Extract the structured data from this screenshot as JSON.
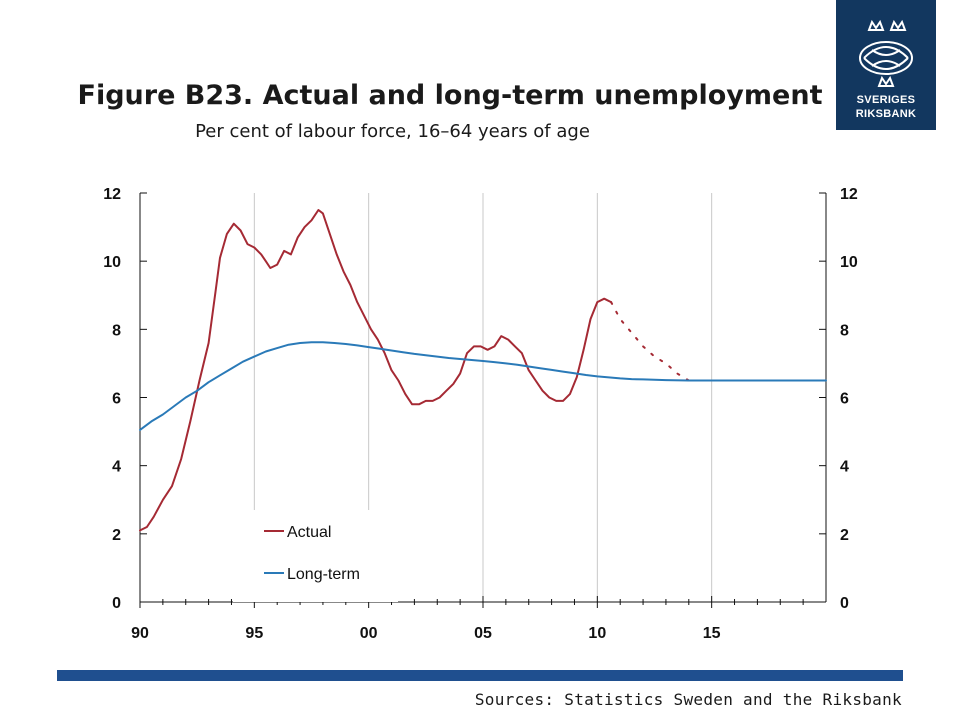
{
  "header": {
    "title": "Figure B23. Actual and long-term unemployment",
    "subtitle": "Per cent of labour force, 16–64 years of age"
  },
  "logo": {
    "line1": "SVERIGES",
    "line2": "RIKSBANK",
    "color": "#12375f"
  },
  "footer": {
    "sources": "Sources: Statistics Sweden and the Riksbank",
    "bar_color": "#1f4f8f"
  },
  "chart_data": {
    "type": "line",
    "title": "",
    "xlabel": "",
    "ylabel": "",
    "xlim": [
      1990,
      2020
    ],
    "ylim": [
      0,
      12
    ],
    "x_ticks": [
      1990,
      1995,
      2000,
      2005,
      2010,
      2015
    ],
    "x_tick_labels": [
      "90",
      "95",
      "00",
      "05",
      "10",
      "15"
    ],
    "y_ticks": [
      0,
      2,
      4,
      6,
      8,
      10,
      12
    ],
    "y_tick_labels": [
      "0",
      "2",
      "4",
      "6",
      "8",
      "10",
      "12"
    ],
    "grid": "vertical",
    "legend_position": "lower-left",
    "series": [
      {
        "name": "Actual",
        "color": "#a52a34",
        "style": "solid",
        "points": [
          [
            1990.0,
            2.1
          ],
          [
            1990.3,
            2.2
          ],
          [
            1990.6,
            2.5
          ],
          [
            1991.0,
            3.0
          ],
          [
            1991.4,
            3.4
          ],
          [
            1991.8,
            4.2
          ],
          [
            1992.2,
            5.3
          ],
          [
            1992.6,
            6.5
          ],
          [
            1993.0,
            7.6
          ],
          [
            1993.3,
            9.1
          ],
          [
            1993.5,
            10.1
          ],
          [
            1993.8,
            10.8
          ],
          [
            1994.1,
            11.1
          ],
          [
            1994.4,
            10.9
          ],
          [
            1994.7,
            10.5
          ],
          [
            1995.0,
            10.4
          ],
          [
            1995.3,
            10.2
          ],
          [
            1995.5,
            10.0
          ],
          [
            1995.7,
            9.8
          ],
          [
            1996.0,
            9.9
          ],
          [
            1996.3,
            10.3
          ],
          [
            1996.6,
            10.2
          ],
          [
            1996.9,
            10.7
          ],
          [
            1997.2,
            11.0
          ],
          [
            1997.5,
            11.2
          ],
          [
            1997.8,
            11.5
          ],
          [
            1998.0,
            11.4
          ],
          [
            1998.3,
            10.8
          ],
          [
            1998.6,
            10.2
          ],
          [
            1998.9,
            9.7
          ],
          [
            1999.2,
            9.3
          ],
          [
            1999.5,
            8.8
          ],
          [
            1999.8,
            8.4
          ],
          [
            2000.1,
            8.0
          ],
          [
            2000.4,
            7.7
          ],
          [
            2000.7,
            7.3
          ],
          [
            2001.0,
            6.8
          ],
          [
            2001.3,
            6.5
          ],
          [
            2001.6,
            6.1
          ],
          [
            2001.9,
            5.8
          ],
          [
            2002.2,
            5.8
          ],
          [
            2002.5,
            5.9
          ],
          [
            2002.8,
            5.9
          ],
          [
            2003.1,
            6.0
          ],
          [
            2003.4,
            6.2
          ],
          [
            2003.7,
            6.4
          ],
          [
            2004.0,
            6.7
          ],
          [
            2004.3,
            7.3
          ],
          [
            2004.6,
            7.5
          ],
          [
            2004.9,
            7.5
          ],
          [
            2005.2,
            7.4
          ],
          [
            2005.5,
            7.5
          ],
          [
            2005.8,
            7.8
          ],
          [
            2006.1,
            7.7
          ],
          [
            2006.4,
            7.5
          ],
          [
            2006.7,
            7.3
          ],
          [
            2007.0,
            6.8
          ],
          [
            2007.3,
            6.5
          ],
          [
            2007.6,
            6.2
          ],
          [
            2007.9,
            6.0
          ],
          [
            2008.2,
            5.9
          ],
          [
            2008.5,
            5.9
          ],
          [
            2008.8,
            6.1
          ],
          [
            2009.1,
            6.6
          ],
          [
            2009.4,
            7.4
          ],
          [
            2009.7,
            8.3
          ],
          [
            2010.0,
            8.8
          ],
          [
            2010.3,
            8.9
          ],
          [
            2010.6,
            8.8
          ]
        ]
      },
      {
        "name": "Actual (forecast)",
        "color": "#a52a34",
        "style": "dotted",
        "points": [
          [
            2010.6,
            8.8
          ],
          [
            2011.0,
            8.3
          ],
          [
            2011.5,
            7.9
          ],
          [
            2012.0,
            7.5
          ],
          [
            2012.5,
            7.2
          ],
          [
            2013.0,
            7.0
          ],
          [
            2013.5,
            6.7
          ],
          [
            2014.0,
            6.5
          ]
        ]
      },
      {
        "name": "Long-term",
        "color": "#2a7ab8",
        "style": "solid",
        "points": [
          [
            1990.0,
            5.05
          ],
          [
            1990.5,
            5.3
          ],
          [
            1991.0,
            5.5
          ],
          [
            1991.5,
            5.75
          ],
          [
            1992.0,
            6.0
          ],
          [
            1992.5,
            6.2
          ],
          [
            1993.0,
            6.45
          ],
          [
            1993.5,
            6.65
          ],
          [
            1994.0,
            6.85
          ],
          [
            1994.5,
            7.05
          ],
          [
            1995.0,
            7.2
          ],
          [
            1995.5,
            7.35
          ],
          [
            1996.0,
            7.45
          ],
          [
            1996.5,
            7.55
          ],
          [
            1997.0,
            7.6
          ],
          [
            1997.5,
            7.62
          ],
          [
            1998.0,
            7.62
          ],
          [
            1998.5,
            7.6
          ],
          [
            1999.0,
            7.57
          ],
          [
            1999.5,
            7.53
          ],
          [
            2000.0,
            7.48
          ],
          [
            2000.5,
            7.43
          ],
          [
            2001.0,
            7.38
          ],
          [
            2001.5,
            7.33
          ],
          [
            2002.0,
            7.28
          ],
          [
            2002.5,
            7.24
          ],
          [
            2003.0,
            7.2
          ],
          [
            2003.5,
            7.16
          ],
          [
            2004.0,
            7.13
          ],
          [
            2004.5,
            7.1
          ],
          [
            2005.0,
            7.07
          ],
          [
            2005.5,
            7.04
          ],
          [
            2006.0,
            7.0
          ],
          [
            2006.5,
            6.96
          ],
          [
            2007.0,
            6.91
          ],
          [
            2007.5,
            6.86
          ],
          [
            2008.0,
            6.81
          ],
          [
            2008.5,
            6.76
          ],
          [
            2009.0,
            6.71
          ],
          [
            2009.5,
            6.66
          ],
          [
            2010.0,
            6.62
          ],
          [
            2010.5,
            6.59
          ],
          [
            2011.0,
            6.56
          ],
          [
            2011.5,
            6.54
          ],
          [
            2012.0,
            6.53
          ],
          [
            2012.5,
            6.52
          ],
          [
            2013.0,
            6.51
          ],
          [
            2014.0,
            6.5
          ],
          [
            2015.0,
            6.5
          ],
          [
            2016.0,
            6.5
          ],
          [
            2017.0,
            6.5
          ],
          [
            2018.0,
            6.5
          ],
          [
            2019.0,
            6.5
          ],
          [
            2020.0,
            6.5
          ]
        ]
      }
    ],
    "legend": [
      {
        "label": "Actual",
        "color": "#a52a34"
      },
      {
        "label": "Long-term",
        "color": "#2a7ab8"
      }
    ]
  }
}
